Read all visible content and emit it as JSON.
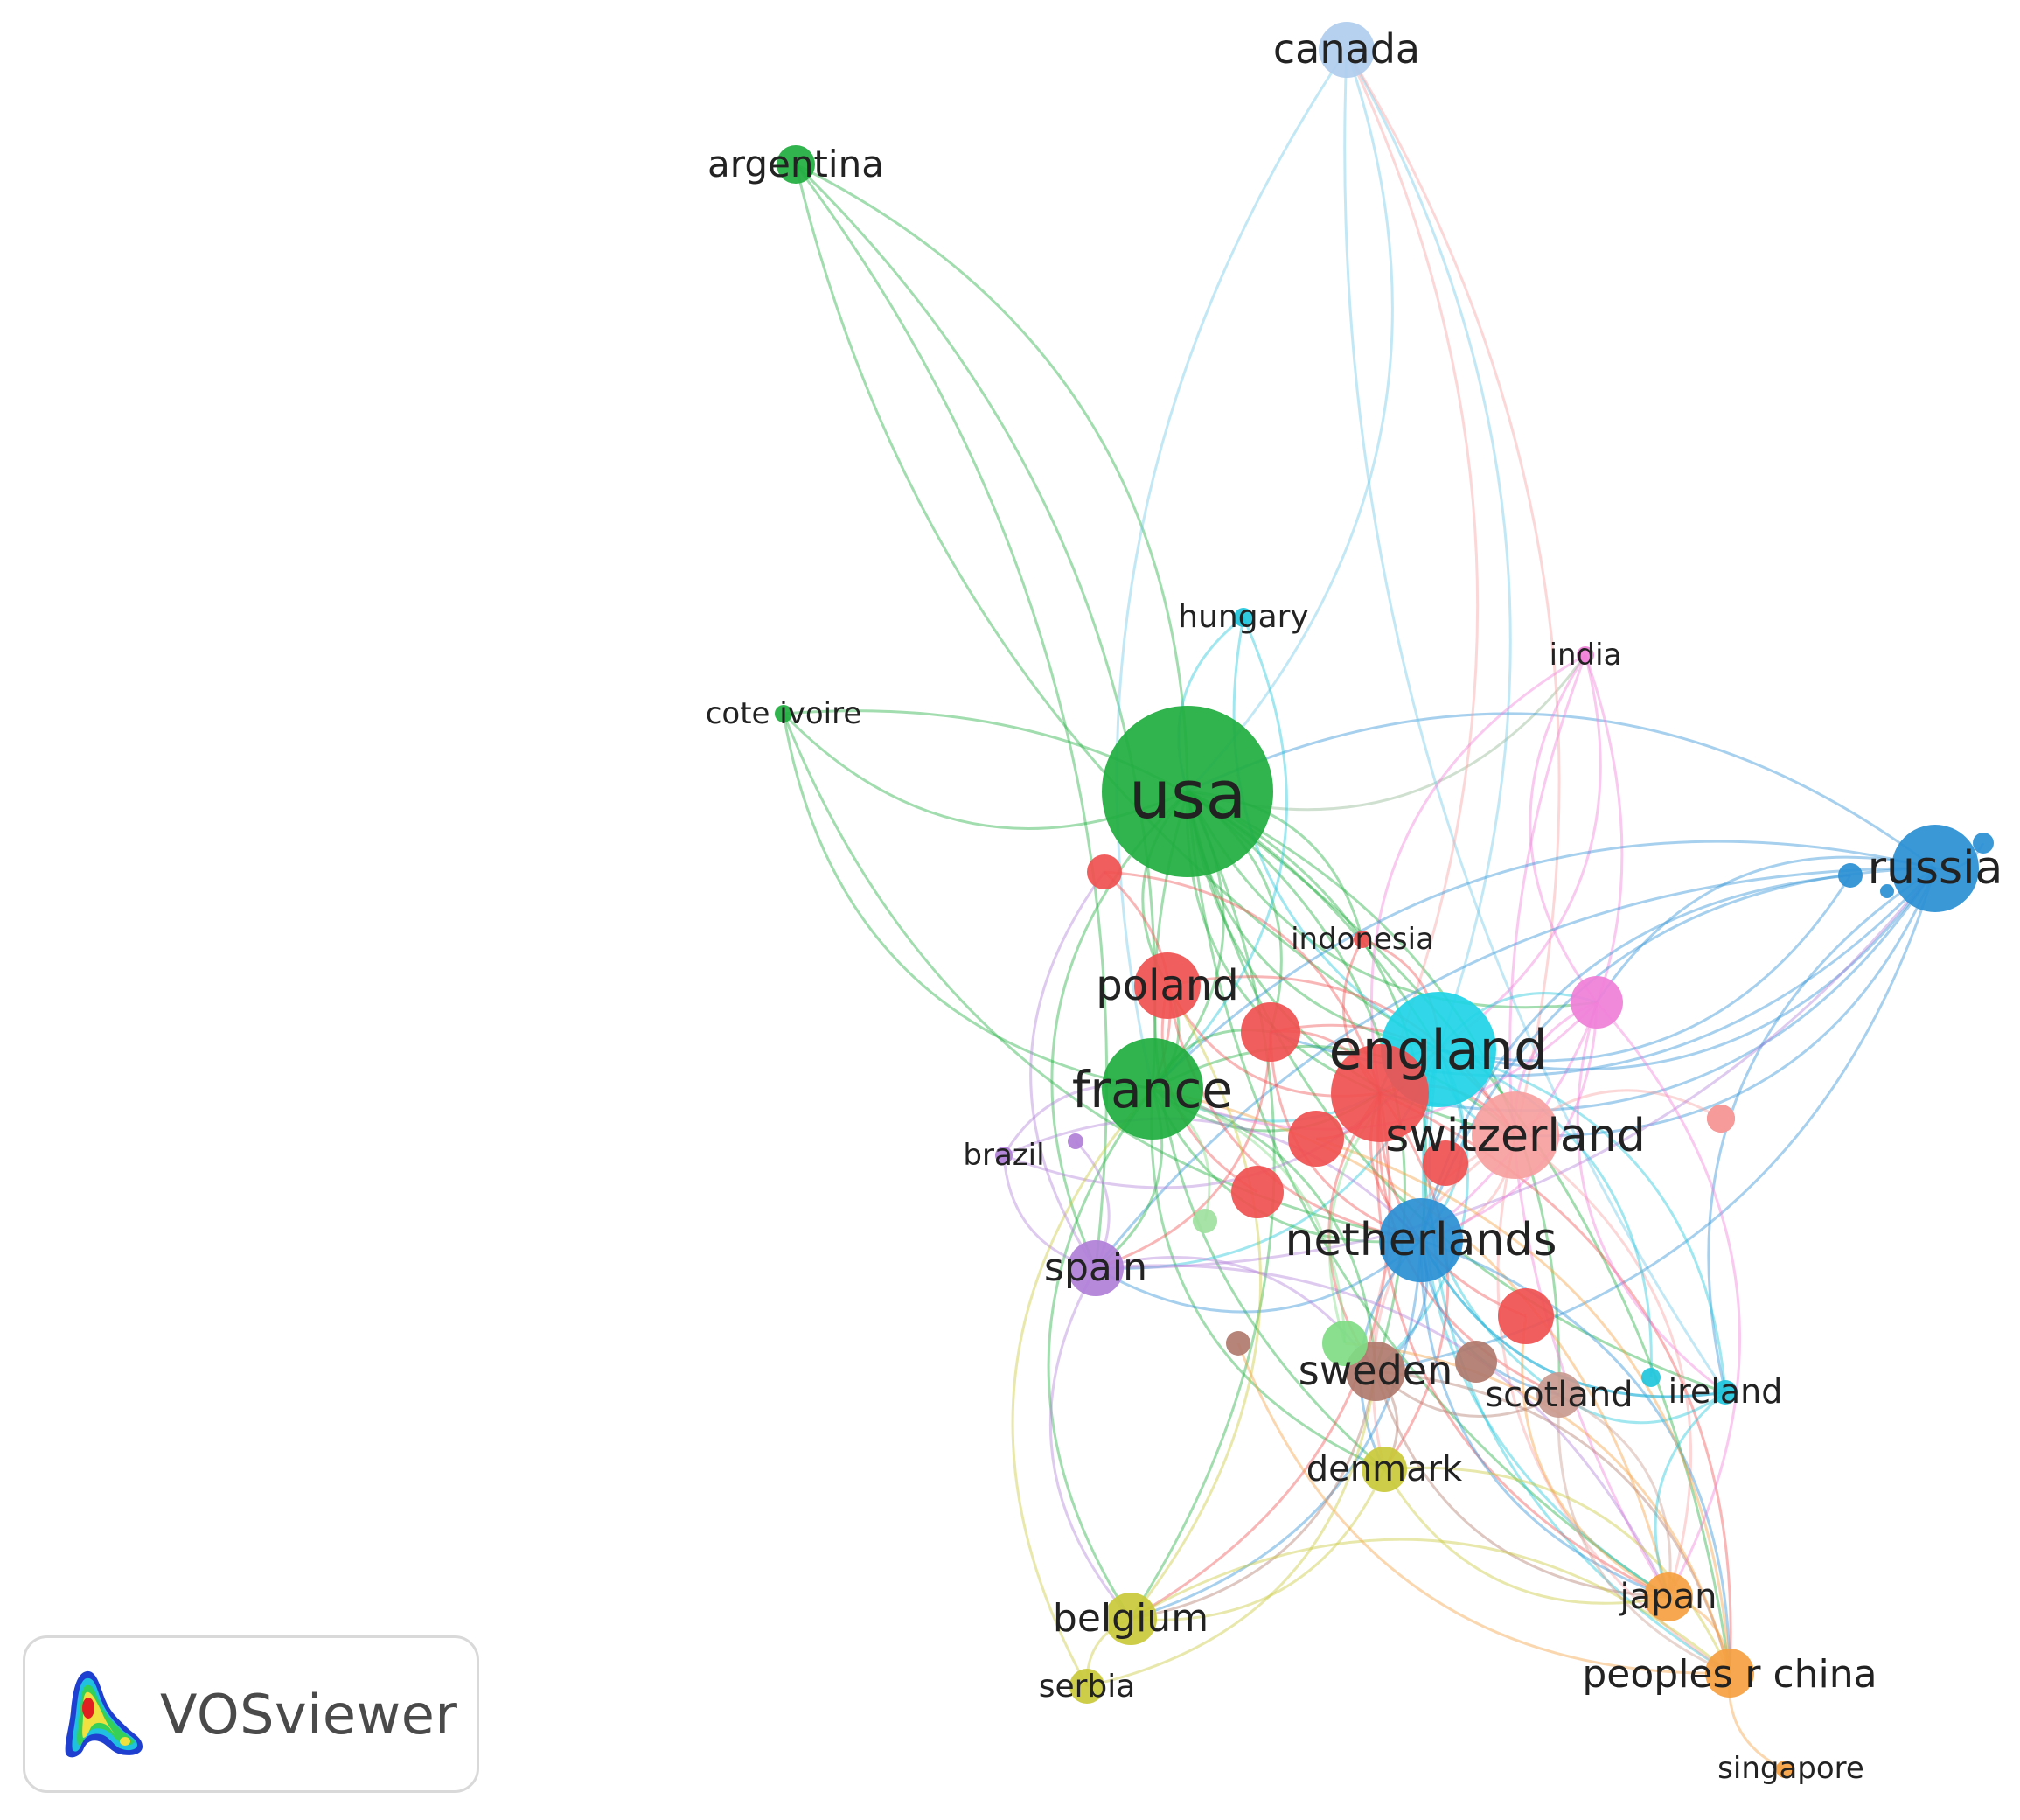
{
  "app": {
    "name": "VOSviewer"
  },
  "network": {
    "nodes": [
      {
        "id": "usa",
        "label": "usa",
        "color": "#1fad3f"
      },
      {
        "id": "england",
        "label": "england",
        "color": "#1fd4e6"
      },
      {
        "id": "france",
        "label": "france",
        "color": "#1fad3f"
      },
      {
        "id": "switzerland",
        "label": "switzerland",
        "color": "#f7a0a0"
      },
      {
        "id": "netherlands",
        "label": "netherlands",
        "color": "#2a8fd4"
      },
      {
        "id": "russia",
        "label": "russia",
        "color": "#2a8fd4"
      },
      {
        "id": "poland",
        "label": "poland",
        "color": "#f05050"
      },
      {
        "id": "sweden",
        "label": "sweden",
        "color": "#b07a6c"
      },
      {
        "id": "spain",
        "label": "spain",
        "color": "#b07fd8"
      },
      {
        "id": "scotland",
        "label": "scotland",
        "color": "#c99a90"
      },
      {
        "id": "ireland",
        "label": "ireland",
        "color": "#1fc6dc"
      },
      {
        "id": "denmark",
        "label": "denmark",
        "color": "#c9c93a"
      },
      {
        "id": "belgium",
        "label": "belgium",
        "color": "#c9c93a"
      },
      {
        "id": "serbia",
        "label": "serbia",
        "color": "#c9c93a"
      },
      {
        "id": "japan",
        "label": "japan",
        "color": "#f5a040"
      },
      {
        "id": "peoples-r-china",
        "label": "peoples r china",
        "color": "#f5a040"
      },
      {
        "id": "singapore",
        "label": "singapore",
        "color": "#f5a040"
      },
      {
        "id": "canada",
        "label": "canada",
        "color": "#b0cdee"
      },
      {
        "id": "argentina",
        "label": "argentina",
        "color": "#1fad3f"
      },
      {
        "id": "cote-ivoire",
        "label": "cote ivoire",
        "color": "#1fad3f"
      },
      {
        "id": "hungary",
        "label": "hungary",
        "color": "#1fc6dc"
      },
      {
        "id": "india",
        "label": "india",
        "color": "#f07fd8"
      },
      {
        "id": "indonesia",
        "label": "indonesia",
        "color": "#f05050"
      },
      {
        "id": "brazil",
        "label": "brazil",
        "color": "#b07fd8"
      },
      {
        "id": "germany",
        "label": "",
        "color": "#f05050"
      },
      {
        "id": "italy",
        "label": "",
        "color": "#f05050"
      },
      {
        "id": "austria",
        "label": "",
        "color": "#f05050"
      },
      {
        "id": "czech",
        "label": "",
        "color": "#f05050"
      },
      {
        "id": "finland",
        "label": "",
        "color": "#f05050"
      },
      {
        "id": "norway",
        "label": "",
        "color": "#f05050"
      },
      {
        "id": "slovakia",
        "label": "",
        "color": "#f05050"
      },
      {
        "id": "portugal",
        "label": "",
        "color": "#f05050"
      },
      {
        "id": "pink-mid",
        "label": "",
        "color": "#f07fd8"
      },
      {
        "id": "pink-right",
        "label": "",
        "color": "#f7a0a0"
      },
      {
        "id": "lightgreen",
        "label": "",
        "color": "#7fdc84"
      },
      {
        "id": "lightgreen2",
        "label": "",
        "color": "#9fe0a0"
      },
      {
        "id": "brown-small",
        "label": "",
        "color": "#b07a6c"
      },
      {
        "id": "brown-mid",
        "label": "",
        "color": "#b07a6c"
      },
      {
        "id": "blue-a",
        "label": "",
        "color": "#2a8fd4"
      },
      {
        "id": "blue-b",
        "label": "",
        "color": "#2a8fd4"
      },
      {
        "id": "blue-c",
        "label": "",
        "color": "#2a8fd4"
      },
      {
        "id": "purple-s",
        "label": "",
        "color": "#b07fd8"
      },
      {
        "id": "cyan-s",
        "label": "",
        "color": "#1fc6dc"
      }
    ]
  }
}
